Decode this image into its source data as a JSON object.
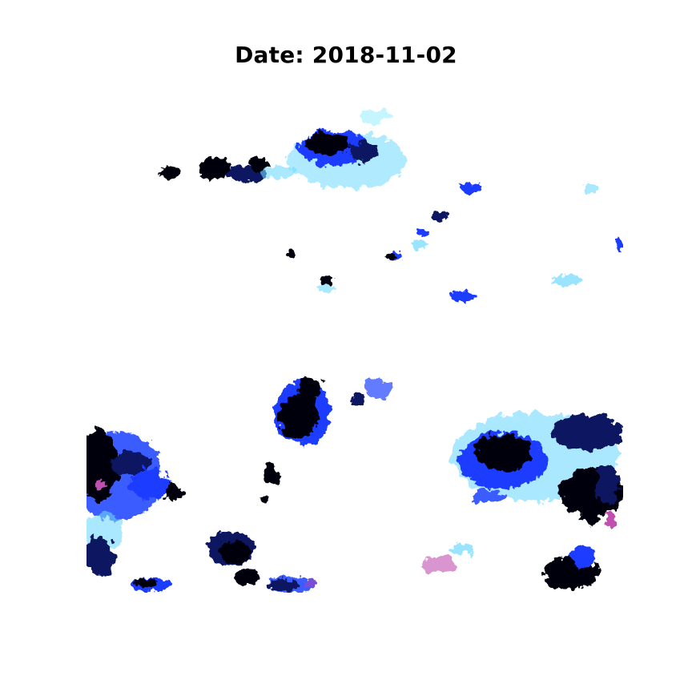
{
  "title": "Date: 2018-11-02",
  "colors": {
    "background": "#ffffff",
    "dark": "#050510",
    "navy": "#0a1460",
    "blue": "#1f3dff",
    "royal": "#3b5bff",
    "light_blue": "#6fd8ff",
    "cyan": "#9ff0ff",
    "purple": "#7a4fd6",
    "magenta": "#c04fb0"
  }
}
